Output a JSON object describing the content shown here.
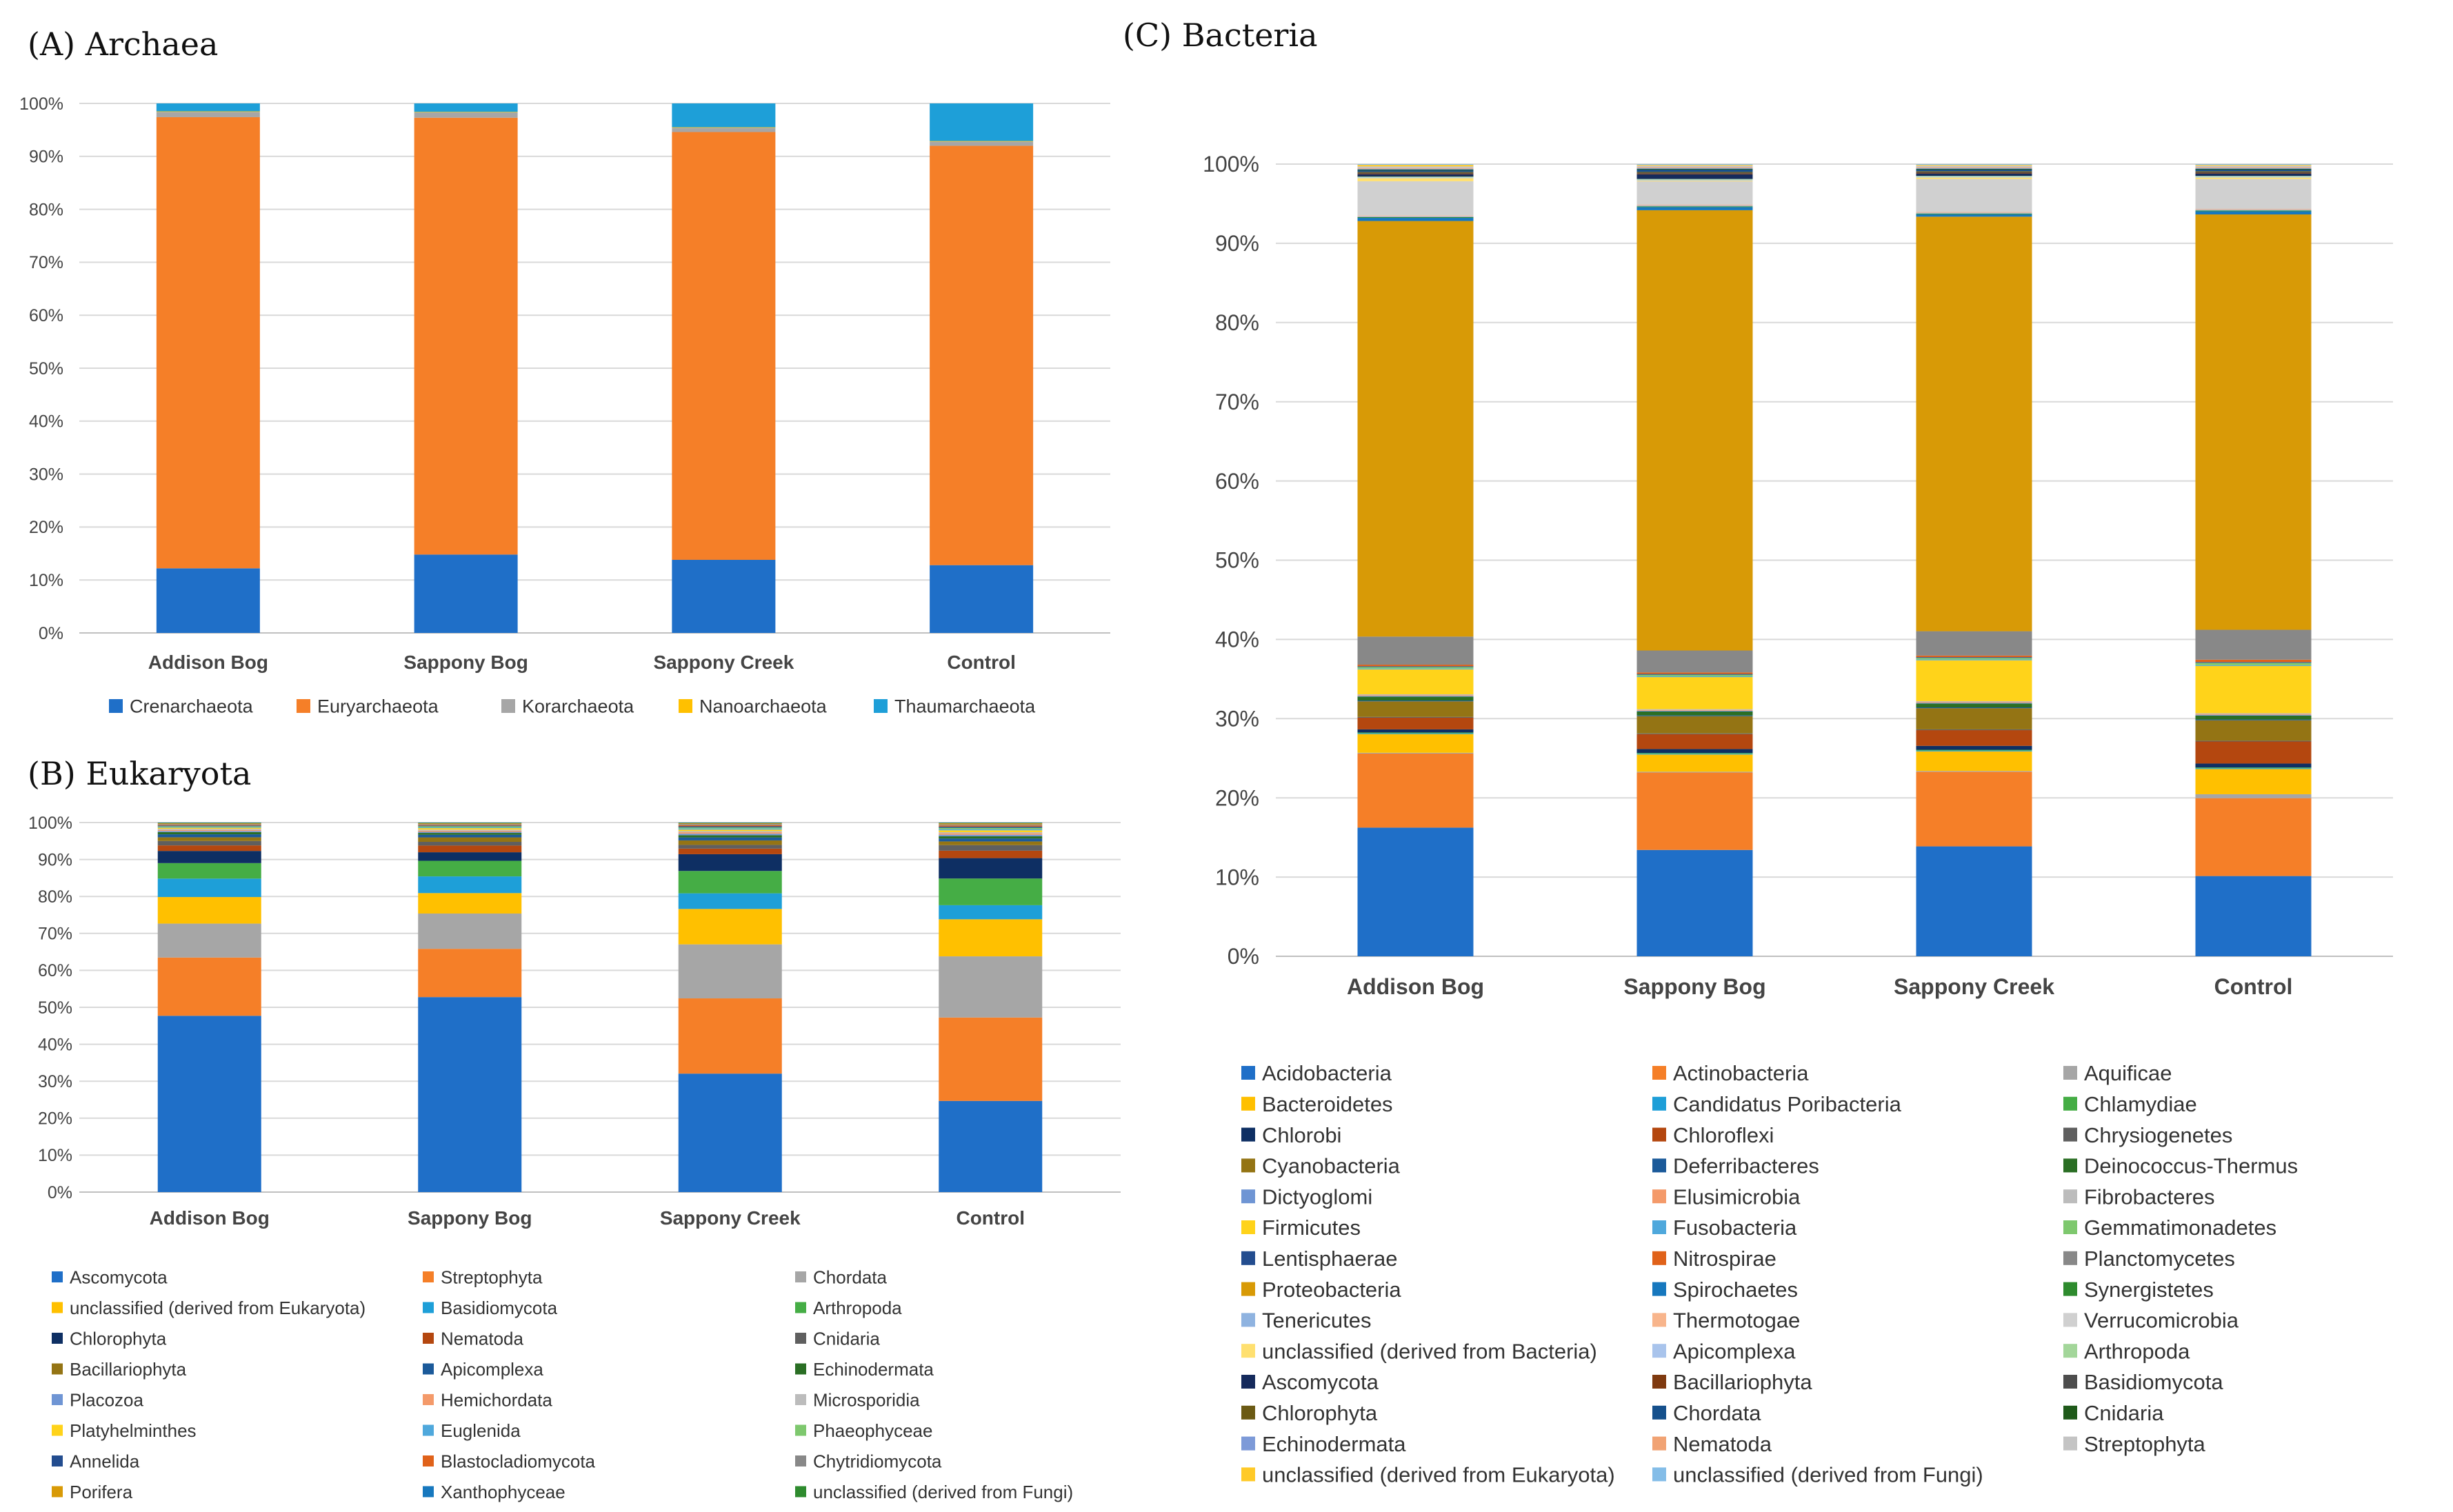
{
  "chart_data": [
    {
      "panel": "archaea",
      "type": "stacked_bar",
      "title": "(A) Archaea",
      "categories": [
        "Addison Bog",
        "Sappony Bog",
        "Sappony Creek",
        "Control"
      ],
      "yticks": [
        "0%",
        "10%",
        "20%",
        "30%",
        "40%",
        "50%",
        "60%",
        "70%",
        "80%",
        "90%",
        "100%"
      ],
      "ylim": [
        0,
        100
      ],
      "legend_position": "bottom",
      "series": [
        {
          "name": "Crenarchaeota",
          "color": "#1f6fc8",
          "values": [
            12.2,
            14.8,
            13.8,
            12.8
          ]
        },
        {
          "name": "Euryarchaeota",
          "color": "#f57f28",
          "values": [
            85.2,
            82.5,
            80.8,
            79.2
          ]
        },
        {
          "name": "Korarchaeota",
          "color": "#a6a6a6",
          "values": [
            1.0,
            1.0,
            0.8,
            0.8
          ]
        },
        {
          "name": "Nanoarchaeota",
          "color": "#ffc000",
          "values": [
            0.1,
            0.1,
            0.1,
            0.1
          ]
        },
        {
          "name": "Thaumarchaeota",
          "color": "#1e9fd8",
          "values": [
            1.5,
            1.6,
            4.5,
            7.1
          ]
        }
      ]
    },
    {
      "panel": "eukaryota",
      "type": "stacked_bar",
      "title": "(B) Eukaryota",
      "categories": [
        "Addison Bog",
        "Sappony Bog",
        "Sappony Creek",
        "Control"
      ],
      "yticks": [
        "0%",
        "10%",
        "20%",
        "30%",
        "40%",
        "50%",
        "60%",
        "70%",
        "80%",
        "90%",
        "100%"
      ],
      "ylim": [
        0,
        100
      ],
      "legend_position": "bottom",
      "series": [
        {
          "name": "Ascomycota",
          "color": "#1f6fc8",
          "values": [
            47.8,
            52.5,
            31.8,
            24.6
          ]
        },
        {
          "name": "Streptophyta",
          "color": "#f57f28",
          "values": [
            15.8,
            13.0,
            20.2,
            22.5
          ]
        },
        {
          "name": "Chordata",
          "color": "#a6a6a6",
          "values": [
            9.2,
            9.5,
            14.5,
            16.5
          ]
        },
        {
          "name": "unclassified (derived from Eukaryota)",
          "color": "#ffc000",
          "values": [
            7.2,
            5.5,
            9.5,
            10.0
          ]
        },
        {
          "name": "Basidiomycota",
          "color": "#1e9fd8",
          "values": [
            5.0,
            4.5,
            4.2,
            3.8
          ]
        },
        {
          "name": "Arthropoda",
          "color": "#45ad45",
          "values": [
            4.2,
            4.2,
            6.0,
            7.2
          ]
        },
        {
          "name": "Chlorophyta",
          "color": "#0e2f63",
          "values": [
            3.3,
            2.3,
            4.5,
            5.5
          ]
        },
        {
          "name": "Nematoda",
          "color": "#b4470f",
          "values": [
            1.5,
            1.8,
            1.5,
            2.0
          ]
        },
        {
          "name": "Cnidaria",
          "color": "#5f5f5f",
          "values": [
            1.2,
            1.0,
            1.0,
            1.5
          ]
        },
        {
          "name": "Bacillariophyta",
          "color": "#947414",
          "values": [
            1.0,
            1.2,
            1.2,
            1.0
          ]
        },
        {
          "name": "Apicomplexa",
          "color": "#1b5a9a",
          "values": [
            0.8,
            0.7,
            0.8,
            0.8
          ]
        },
        {
          "name": "Echinodermata",
          "color": "#2a6e24",
          "values": [
            0.6,
            0.5,
            0.6,
            0.6
          ]
        },
        {
          "name": "Placozoa",
          "color": "#6f95d4",
          "values": [
            0.3,
            0.3,
            0.4,
            0.4
          ]
        },
        {
          "name": "Hemichordata",
          "color": "#f49a6a",
          "values": [
            0.3,
            0.3,
            0.4,
            0.4
          ]
        },
        {
          "name": "Microsporidia",
          "color": "#bcbcbc",
          "values": [
            0.3,
            0.3,
            0.3,
            0.3
          ]
        },
        {
          "name": "Platyhelminthes",
          "color": "#ffd31a",
          "values": [
            0.3,
            0.4,
            0.4,
            0.5
          ]
        },
        {
          "name": "Euglenida",
          "color": "#4fa8dc",
          "values": [
            0.2,
            0.2,
            0.3,
            0.3
          ]
        },
        {
          "name": "Phaeophyceae",
          "color": "#7ec86e",
          "values": [
            0.2,
            0.3,
            0.3,
            0.4
          ]
        },
        {
          "name": "Annelida",
          "color": "#234d8f",
          "values": [
            0.2,
            0.2,
            0.3,
            0.3
          ]
        },
        {
          "name": "Blastocladiomycota",
          "color": "#e0621a",
          "values": [
            0.2,
            0.2,
            0.3,
            0.3
          ]
        },
        {
          "name": "Chytridiomycota",
          "color": "#888888",
          "values": [
            0.2,
            0.2,
            0.3,
            0.3
          ]
        },
        {
          "name": "Porifera",
          "color": "#d89a06",
          "values": [
            0.2,
            0.2,
            0.2,
            0.3
          ]
        },
        {
          "name": "Xanthophyceae",
          "color": "#1778be",
          "values": [
            0.1,
            0.1,
            0.1,
            0.1
          ]
        },
        {
          "name": "unclassified (derived from Fungi)",
          "color": "#2e8b2e",
          "values": [
            0.1,
            0.1,
            0.1,
            0.1
          ]
        }
      ]
    },
    {
      "panel": "bacteria",
      "type": "stacked_bar",
      "title": "(C) Bacteria",
      "categories": [
        "Addison Bog",
        "Sappony Bog",
        "Sappony Creek",
        "Control"
      ],
      "yticks": [
        "0%",
        "10%",
        "20%",
        "30%",
        "40%",
        "50%",
        "60%",
        "70%",
        "80%",
        "90%",
        "100%"
      ],
      "ylim": [
        0,
        100
      ],
      "legend_position": "bottom",
      "series": [
        {
          "name": "Acidobacteria",
          "color": "#1f6fc8",
          "values": [
            16.5,
            13.6,
            14.0,
            10.2
          ]
        },
        {
          "name": "Actinobacteria",
          "color": "#f57f28",
          "values": [
            9.5,
            9.9,
            9.5,
            9.9
          ]
        },
        {
          "name": "Aquificae",
          "color": "#a6a6a6",
          "values": [
            0.1,
            0.1,
            0.1,
            0.5
          ]
        },
        {
          "name": "Bacteroidetes",
          "color": "#ffc000",
          "values": [
            2.4,
            2.2,
            2.5,
            3.2
          ]
        },
        {
          "name": "Candidatus Poribacteria",
          "color": "#1e9fd8",
          "values": [
            0.1,
            0.1,
            0.1,
            0.1
          ]
        },
        {
          "name": "Chlamydiae",
          "color": "#45ad45",
          "values": [
            0.1,
            0.1,
            0.1,
            0.1
          ]
        },
        {
          "name": "Chlorobi",
          "color": "#0e2f63",
          "values": [
            0.4,
            0.5,
            0.5,
            0.5
          ]
        },
        {
          "name": "Chloroflexi",
          "color": "#b4470f",
          "values": [
            1.5,
            1.9,
            2.0,
            2.8
          ]
        },
        {
          "name": "Chrysiogenetes",
          "color": "#5f5f5f",
          "values": [
            0.1,
            0.1,
            0.1,
            0.1
          ]
        },
        {
          "name": "Cyanobacteria",
          "color": "#947414",
          "values": [
            2.0,
            2.2,
            2.7,
            2.6
          ]
        },
        {
          "name": "Deferribacteres",
          "color": "#1b5a9a",
          "values": [
            0.1,
            0.1,
            0.1,
            0.1
          ]
        },
        {
          "name": "Deinococcus-Thermus",
          "color": "#2a6e24",
          "values": [
            0.5,
            0.5,
            0.5,
            0.5
          ]
        },
        {
          "name": "Dictyoglomi",
          "color": "#6f95d4",
          "values": [
            0.1,
            0.1,
            0.1,
            0.1
          ]
        },
        {
          "name": "Elusimicrobia",
          "color": "#f49a6a",
          "values": [
            0.1,
            0.1,
            0.1,
            0.1
          ]
        },
        {
          "name": "Fibrobacteres",
          "color": "#bcbcbc",
          "values": [
            0.1,
            0.1,
            0.1,
            0.1
          ]
        },
        {
          "name": "Firmicutes",
          "color": "#ffd31a",
          "values": [
            3.2,
            4.1,
            5.2,
            6.0
          ]
        },
        {
          "name": "Fusobacteria",
          "color": "#4fa8dc",
          "values": [
            0.1,
            0.1,
            0.1,
            0.1
          ]
        },
        {
          "name": "Gemmatimonadetes",
          "color": "#7ec86e",
          "values": [
            0.2,
            0.2,
            0.2,
            0.3
          ]
        },
        {
          "name": "Lentisphaerae",
          "color": "#234d8f",
          "values": [
            0.1,
            0.1,
            0.1,
            0.1
          ]
        },
        {
          "name": "Nitrospirae",
          "color": "#e0621a",
          "values": [
            0.2,
            0.2,
            0.2,
            0.3
          ]
        },
        {
          "name": "Planctomycetes",
          "color": "#888888",
          "values": [
            3.6,
            2.8,
            3.1,
            3.8
          ]
        },
        {
          "name": "Proteobacteria",
          "color": "#d89a06",
          "values": [
            53.3,
            56.3,
            52.8,
            52.8
          ]
        },
        {
          "name": "Spirochaetes",
          "color": "#1778be",
          "values": [
            0.4,
            0.4,
            0.3,
            0.4
          ]
        },
        {
          "name": "Synergistetes",
          "color": "#2e8b2e",
          "values": [
            0.1,
            0.1,
            0.1,
            0.1
          ]
        },
        {
          "name": "Tenericutes",
          "color": "#8fb3e0",
          "values": [
            0.1,
            0.1,
            0.1,
            0.1
          ]
        },
        {
          "name": "Thermotogae",
          "color": "#f8b58c",
          "values": [
            0.1,
            0.1,
            0.1,
            0.1
          ]
        },
        {
          "name": "Verrucomicrobia",
          "color": "#d0d0d0",
          "values": [
            4.4,
            3.0,
            4.2,
            3.8
          ]
        },
        {
          "name": "unclassified (derived from Bacteria)",
          "color": "#ffe070",
          "values": [
            0.4,
            0.1,
            0.2,
            0.2
          ]
        },
        {
          "name": "Apicomplexa",
          "color": "#a9c4ec",
          "values": [
            0.1,
            0.1,
            0.1,
            0.1
          ]
        },
        {
          "name": "Arthropoda",
          "color": "#a3d69a",
          "values": [
            0.1,
            0.1,
            0.1,
            0.1
          ]
        },
        {
          "name": "Ascomycota",
          "color": "#152a5c",
          "values": [
            0.3,
            0.6,
            0.3,
            0.3
          ]
        },
        {
          "name": "Bacillariophyta",
          "color": "#7f3a10",
          "values": [
            0.1,
            0.1,
            0.1,
            0.1
          ]
        },
        {
          "name": "Basidiomycota",
          "color": "#4d4d4d",
          "values": [
            0.1,
            0.1,
            0.1,
            0.1
          ]
        },
        {
          "name": "Chlorophyta",
          "color": "#6b5a14",
          "values": [
            0.1,
            0.1,
            0.1,
            0.1
          ]
        },
        {
          "name": "Chordata",
          "color": "#15508c",
          "values": [
            0.2,
            0.3,
            0.2,
            0.2
          ]
        },
        {
          "name": "Cnidaria",
          "color": "#1f5a1a",
          "values": [
            0.1,
            0.1,
            0.1,
            0.1
          ]
        },
        {
          "name": "Echinodermata",
          "color": "#7d9ad8",
          "values": [
            0.1,
            0.1,
            0.1,
            0.1
          ]
        },
        {
          "name": "Nematoda",
          "color": "#f1a374",
          "values": [
            0.1,
            0.1,
            0.1,
            0.1
          ]
        },
        {
          "name": "Streptophyta",
          "color": "#c4c4c4",
          "values": [
            0.2,
            0.2,
            0.2,
            0.2
          ]
        },
        {
          "name": "unclassified (derived from Eukaryota)",
          "color": "#ffca28",
          "values": [
            0.2,
            0.1,
            0.1,
            0.1
          ]
        },
        {
          "name": "unclassified (derived from Fungi)",
          "color": "#84bde8",
          "values": [
            0.1,
            0.1,
            0.1,
            0.1
          ]
        }
      ]
    }
  ]
}
